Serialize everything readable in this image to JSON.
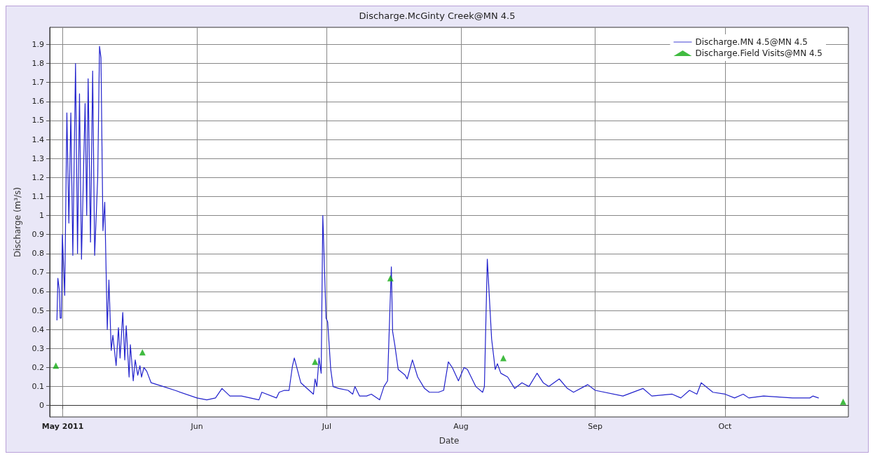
{
  "chart_data": {
    "type": "line",
    "title": "Discharge.McGinty Creek@MN 4.5",
    "xlabel": "Date",
    "ylabel": "Discharge (m³/s)",
    "xlim": [
      "2011-04-28",
      "2011-10-29T12:00"
    ],
    "xticks": [
      {
        "value": "2011-05-01",
        "label": "May 2011"
      },
      {
        "value": "2011-06-01",
        "label": "Jun"
      },
      {
        "value": "2011-07-01",
        "label": "Jul"
      },
      {
        "value": "2011-08-01",
        "label": "Aug"
      },
      {
        "value": "2011-09-01",
        "label": "Sep"
      },
      {
        "value": "2011-10-01",
        "label": "Oct"
      }
    ],
    "ylim": [
      -0.06,
      1.99
    ],
    "yticks": [
      0,
      0.1,
      0.2,
      0.3,
      0.4,
      0.5,
      0.6,
      0.7,
      0.8,
      0.9,
      1,
      1.1,
      1.2,
      1.3,
      1.4,
      1.5,
      1.6,
      1.7,
      1.8,
      1.9
    ],
    "grid": true,
    "legend": "top right",
    "series": [
      {
        "name": "Discharge.MN 4.5@MN 4.5",
        "color": "#2222cc",
        "marker": "none",
        "line_style": "solid",
        "x": [
          "2011-04-29T16:00",
          "2011-04-29T21:00",
          "2011-04-30T05:00",
          "2011-04-30T10:00",
          "2011-04-30T16:00",
          "2011-04-30T22:00",
          "2011-05-01T11:00",
          "2011-05-01T23:00",
          "2011-05-02T10:00",
          "2011-05-02T21:00",
          "2011-05-03T08:00",
          "2011-05-03T23:00",
          "2011-05-04T10:00",
          "2011-05-04T21:00",
          "2011-05-05T08:00",
          "2011-05-06T04:00",
          "2011-05-06T13:00",
          "2011-05-06T21:00",
          "2011-05-07T10:00",
          "2011-05-07T22:00",
          "2011-05-08T09:00",
          "2011-05-09T02:00",
          "2011-05-09T12:00",
          "2011-05-09T20:00",
          "2011-05-10T07:00",
          "2011-05-10T17:00",
          "2011-05-11T07:00",
          "2011-05-11T16:00",
          "2011-05-12T05:00",
          "2011-05-12T14:00",
          "2011-05-13T08:00",
          "2011-05-13T21:00",
          "2011-05-14T06:00",
          "2011-05-14T21:00",
          "2011-05-15T08:00",
          "2011-05-15T16:00",
          "2011-05-16T08:00",
          "2011-05-16T15:00",
          "2011-05-17T07:00",
          "2011-05-17T18:00",
          "2011-05-18T08:00",
          "2011-05-18T20:00",
          "2011-05-19T05:00",
          "2011-05-19T18:00",
          "2011-05-20T10:00",
          "2011-05-21T10:00",
          "2011-05-24T06:00",
          "2011-05-26T22:00",
          "2011-06-01T00:00",
          "2011-06-03T07:00",
          "2011-06-05T07:00",
          "2011-06-06T19:00",
          "2011-06-08T15:00",
          "2011-06-11T07:00",
          "2011-06-15T08:00",
          "2011-06-16T00:00",
          "2011-06-19T09:00",
          "2011-06-20T00:00",
          "2011-06-21T05:00",
          "2011-06-22T07:00",
          "2011-06-23T02:00",
          "2011-06-23T12:00",
          "2011-06-25T00:00",
          "2011-06-27T22:00",
          "2011-06-28T07:00",
          "2011-06-28T17:00",
          "2011-06-29T05:00",
          "2011-06-29T17:00",
          "2011-06-30T02:00",
          "2011-06-30T20:00",
          "2011-07-01T05:00",
          "2011-07-01T22:00",
          "2011-07-02T11:00",
          "2011-07-03T19:00",
          "2011-07-05T22:00",
          "2011-07-07T00:00",
          "2011-07-07T12:00",
          "2011-07-08T14:00",
          "2011-07-10T05:00",
          "2011-07-11T07:00",
          "2011-07-13T05:00",
          "2011-07-14T05:00",
          "2011-07-15T01:00",
          "2011-07-15T22:00",
          "2011-07-16T05:00",
          "2011-07-16T17:00",
          "2011-07-17T12:00",
          "2011-07-19T02:00",
          "2011-07-19T14:00",
          "2011-07-20T19:00",
          "2011-07-22T00:00",
          "2011-07-23T14:00",
          "2011-07-24T17:00",
          "2011-07-26T19:00",
          "2011-07-28T00:00",
          "2011-07-29T02:00",
          "2011-07-30T00:00",
          "2011-07-31T10:00",
          "2011-08-01T17:00",
          "2011-08-02T12:00",
          "2011-08-04T10:00",
          "2011-08-06T00:00",
          "2011-08-06T10:00",
          "2011-08-07T02:00",
          "2011-08-07T10:00",
          "2011-08-08T02:00",
          "2011-08-08T22:00",
          "2011-08-09T10:00",
          "2011-08-10T05:00",
          "2011-08-11T19:00",
          "2011-08-13T10:00",
          "2011-08-15T02:00",
          "2011-08-16T17:00",
          "2011-08-18T14:00",
          "2011-08-20T00:00",
          "2011-08-21T07:00",
          "2011-08-23T17:00",
          "2011-08-25T14:00",
          "2011-08-27T00:00",
          "2011-08-30T07:00",
          "2011-09-01T00:00",
          "2011-09-07T10:00",
          "2011-09-12T01:00",
          "2011-09-14T02:00",
          "2011-09-18T19:00",
          "2011-09-20T19:00",
          "2011-09-22T19:00",
          "2011-09-24T12:00",
          "2011-09-25T12:00",
          "2011-09-28T05:00",
          "2011-10-01T00:00",
          "2011-10-03T05:00",
          "2011-10-05T05:00",
          "2011-10-06T12:00",
          "2011-10-09T22:00",
          "2011-10-16T14:00",
          "2011-10-20T14:00",
          "2011-10-21T07:00",
          "2011-10-22T14:00"
        ],
        "values": [
          0.45,
          0.67,
          0.61,
          0.46,
          0.46,
          0.9,
          0.58,
          1.54,
          0.96,
          1.54,
          0.79,
          1.8,
          0.8,
          1.64,
          0.77,
          1.59,
          1.0,
          1.72,
          0.86,
          1.76,
          0.79,
          1.2,
          1.89,
          1.83,
          0.92,
          1.07,
          0.4,
          0.66,
          0.29,
          0.37,
          0.21,
          0.41,
          0.25,
          0.49,
          0.24,
          0.42,
          0.15,
          0.32,
          0.13,
          0.24,
          0.16,
          0.21,
          0.15,
          0.2,
          0.18,
          0.12,
          0.1,
          0.08,
          0.04,
          0.03,
          0.04,
          0.09,
          0.05,
          0.05,
          0.03,
          0.07,
          0.04,
          0.07,
          0.08,
          0.08,
          0.21,
          0.25,
          0.12,
          0.06,
          0.14,
          0.1,
          0.25,
          0.17,
          1.0,
          0.46,
          0.44,
          0.19,
          0.1,
          0.09,
          0.08,
          0.06,
          0.1,
          0.05,
          0.05,
          0.06,
          0.03,
          0.1,
          0.13,
          0.73,
          0.39,
          0.32,
          0.19,
          0.16,
          0.14,
          0.24,
          0.15,
          0.09,
          0.07,
          0.07,
          0.08,
          0.23,
          0.2,
          0.13,
          0.2,
          0.19,
          0.1,
          0.07,
          0.1,
          0.77,
          0.63,
          0.35,
          0.19,
          0.22,
          0.17,
          0.15,
          0.09,
          0.12,
          0.1,
          0.17,
          0.12,
          0.1,
          0.14,
          0.09,
          0.07,
          0.11,
          0.08,
          0.05,
          0.09,
          0.05,
          0.06,
          0.04,
          0.08,
          0.06,
          0.12,
          0.07,
          0.06,
          0.04,
          0.06,
          0.04,
          0.05,
          0.04,
          0.04,
          0.05,
          0.04
        ]
      },
      {
        "name": "Discharge.Field Visits@MN 4.5",
        "type": "scatter",
        "color": "#11aa11",
        "marker": "triangle",
        "x": [
          "2011-04-29T10:00",
          "2011-05-19T10:00",
          "2011-06-28T07:00",
          "2011-07-15T17:00",
          "2011-08-10T19:00",
          "2011-10-28T07:00"
        ],
        "values": [
          0.21,
          0.28,
          0.23,
          0.67,
          0.25,
          0.02
        ]
      }
    ]
  }
}
